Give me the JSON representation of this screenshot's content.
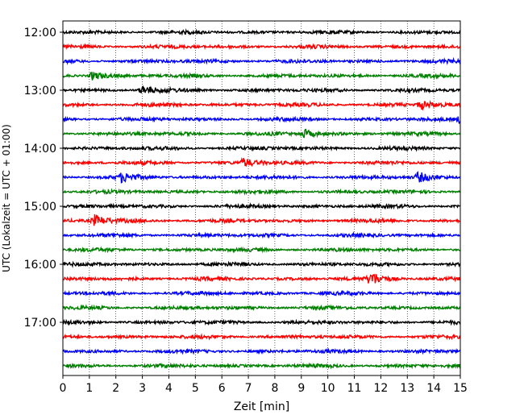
{
  "chart_data": {
    "type": "line",
    "title": "",
    "xlabel": "Zeit  [min]",
    "ylabel": "UTC (Lokalzeit = UTC + 01:00)",
    "xlim": [
      0,
      15
    ],
    "x_ticks": [
      "0",
      "1",
      "2",
      "3",
      "4",
      "5",
      "6",
      "7",
      "8",
      "9",
      "10",
      "11",
      "12",
      "13",
      "14",
      "15"
    ],
    "y_tick_labels": [
      "12:00",
      "13:00",
      "14:00",
      "15:00",
      "16:00",
      "17:00"
    ],
    "y_tick_rows": [
      0,
      4,
      8,
      12,
      16,
      20
    ],
    "rows": 24,
    "row_interval_minutes": 15,
    "start_time": "12:00",
    "end_time": "17:45",
    "vertical_grid": true,
    "grid_style": "dotted",
    "trace_colors": [
      "#000000",
      "#ff0000",
      "#0000ff",
      "#008000"
    ],
    "events": [
      {
        "row": 17,
        "minute": 11.6,
        "amplitude": 8
      },
      {
        "row": 13,
        "minute": 1.2,
        "amplitude": 7
      },
      {
        "row": 5,
        "minute": 13.5,
        "amplitude": 5
      },
      {
        "row": 9,
        "minute": 6.8,
        "amplitude": 5
      },
      {
        "row": 10,
        "minute": 2.2,
        "amplitude": 5
      },
      {
        "row": 10,
        "minute": 13.4,
        "amplitude": 6
      },
      {
        "row": 7,
        "minute": 9.1,
        "amplitude": 5
      },
      {
        "row": 3,
        "minute": 1.1,
        "amplitude": 5
      },
      {
        "row": 4,
        "minute": 3.0,
        "amplitude": 5
      },
      {
        "row": 6,
        "minute": 15.0,
        "amplitude": 6
      }
    ]
  }
}
